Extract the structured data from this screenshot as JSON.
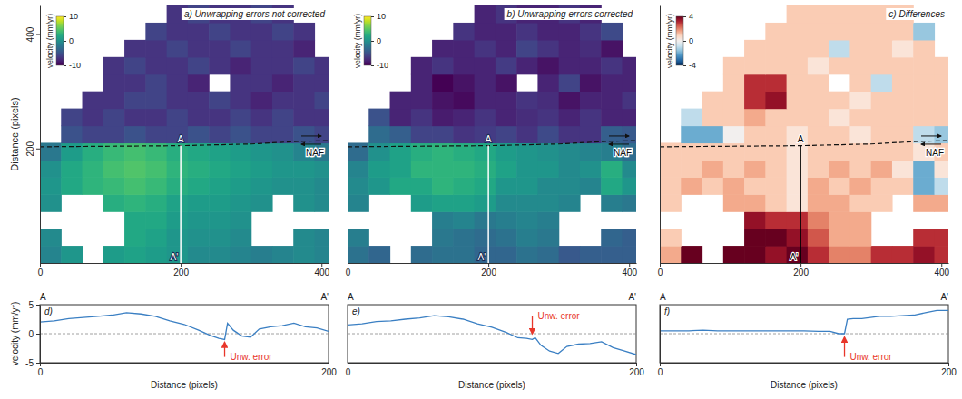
{
  "chart_data": [
    {
      "type": "heatmap",
      "title": "a) Unwrapping errors not corrected",
      "y_label": "Distance (pixels)",
      "xlim": [
        0,
        410
      ],
      "ylim": [
        0,
        450
      ],
      "xticks": [
        0,
        200,
        400
      ],
      "yticks": [
        200,
        400
      ],
      "color": "viridis",
      "x": [
        15,
        45,
        75,
        105,
        135,
        165,
        195,
        225,
        255,
        285,
        315,
        345,
        375,
        405
      ],
      "y": [
        15,
        45,
        75,
        105,
        135,
        165,
        195,
        225,
        255,
        285,
        315,
        345,
        375,
        405,
        435
      ],
      "cells": [
        [
          -1,
          0.5,
          null,
          1,
          1.5,
          1,
          0.5,
          -0.5,
          -0.5,
          -1,
          -1.5,
          -1,
          -0.5,
          -1
        ],
        [
          -0.5,
          null,
          null,
          null,
          2,
          1.5,
          0.5,
          0,
          0,
          -0.5,
          null,
          null,
          -0.5,
          -1
        ],
        [
          null,
          null,
          null,
          null,
          2,
          2,
          1,
          0.5,
          0.5,
          0,
          null,
          null,
          null,
          null
        ],
        [
          0,
          null,
          null,
          2.5,
          3,
          2.5,
          1.5,
          1,
          1,
          0.5,
          0,
          null,
          0,
          -0.5
        ],
        [
          0.5,
          2,
          3,
          3.5,
          4,
          3.5,
          2.5,
          2,
          1.5,
          1,
          0.5,
          0,
          0,
          -0.5
        ],
        [
          0,
          2,
          3,
          4,
          4.5,
          4,
          3,
          2.5,
          2,
          1.5,
          1,
          0.5,
          0.5,
          0
        ],
        [
          -2,
          1,
          2.5,
          3.5,
          4,
          3.5,
          2.5,
          2,
          1.5,
          1,
          0.5,
          0,
          -1,
          -2
        ],
        [
          null,
          -5,
          -6,
          -6,
          -5,
          -6,
          -6,
          -5,
          -6,
          -5,
          -6,
          -6,
          -5,
          -6
        ],
        [
          null,
          -6,
          -7,
          -6,
          -7,
          -7,
          -6,
          -7,
          -7,
          -6,
          -7,
          -6,
          -7,
          -7
        ],
        [
          null,
          null,
          -7,
          -7,
          -6,
          -6,
          -7,
          -7,
          -6,
          -7,
          -8,
          -7,
          -7,
          -6
        ],
        [
          null,
          null,
          null,
          -7,
          -7,
          -6,
          -7,
          -8,
          null,
          -7,
          -7,
          -8,
          -7,
          -7
        ],
        [
          null,
          null,
          null,
          -7,
          -6,
          -7,
          -7,
          -6,
          -7,
          -8,
          -7,
          -7,
          -6,
          -7
        ],
        [
          null,
          null,
          null,
          null,
          -7,
          -7,
          -6,
          -7,
          -7,
          -6,
          -7,
          -7,
          -8,
          null
        ],
        [
          null,
          null,
          null,
          null,
          null,
          -6,
          -7,
          -7,
          -6,
          -7,
          -7,
          -6,
          -7,
          null
        ],
        [
          null,
          null,
          null,
          null,
          null,
          null,
          -7,
          -6,
          -7,
          -7,
          -6,
          -7,
          null,
          null
        ]
      ],
      "colorbar": {
        "label": "velocity (mm/yr)",
        "range": [
          -10,
          10
        ],
        "ticks": [
          10,
          0,
          -10
        ]
      },
      "fault": {
        "label": "NAF",
        "line_style": "dashed",
        "x": [
          0,
          100,
          200,
          300,
          360,
          410
        ],
        "y": [
          203,
          204,
          205,
          208,
          212,
          214
        ]
      },
      "profile": {
        "labels": [
          "A",
          "A'"
        ],
        "x": [
          200,
          200
        ],
        "y": [
          205,
          0
        ]
      }
    },
    {
      "type": "heatmap",
      "title": "b) Unwrapping errors corrected",
      "tick_labels": "x",
      "xlim": [
        0,
        410
      ],
      "ylim": [
        0,
        450
      ],
      "xticks": [
        0,
        200,
        400
      ],
      "color": "viridis",
      "x": [
        15,
        45,
        75,
        105,
        135,
        165,
        195,
        225,
        255,
        285,
        315,
        345,
        375,
        405
      ],
      "y": [
        15,
        45,
        75,
        105,
        135,
        165,
        195,
        225,
        255,
        285,
        315,
        345,
        375,
        405,
        435
      ],
      "cells": [
        [
          -2.5,
          -3.5,
          null,
          -3,
          -2.5,
          -2.5,
          -3.5,
          -3.5,
          -2.5,
          -3,
          -4.5,
          -4,
          -4,
          -4
        ],
        [
          -1.5,
          null,
          null,
          null,
          -2,
          -2.5,
          -3,
          -2.5,
          -1.5,
          -2,
          null,
          null,
          -3.5,
          -4
        ],
        [
          null,
          null,
          null,
          null,
          -1.5,
          -1,
          -2,
          -1.5,
          -1,
          -1.5,
          null,
          null,
          null,
          null
        ],
        [
          -1,
          null,
          null,
          1,
          1.5,
          1.5,
          1,
          -0.5,
          -0.5,
          -0.5,
          -1,
          null,
          -1.5,
          -2
        ],
        [
          -0.5,
          0.5,
          2,
          2,
          3,
          2.5,
          2,
          0.5,
          0.5,
          -0.5,
          -0.5,
          -1,
          2,
          0.5
        ],
        [
          -1,
          1,
          1.5,
          3,
          3,
          3,
          2.5,
          1.5,
          0.5,
          0.5,
          -0.5,
          0,
          2.5,
          -0.5
        ],
        [
          -3,
          0,
          1.5,
          2.5,
          3,
          2.5,
          2,
          1,
          0.5,
          0,
          -0.5,
          -1,
          -1.5,
          -3
        ],
        [
          null,
          -3,
          -4,
          -6,
          -6,
          -7,
          -6.5,
          -6,
          -7,
          -5.5,
          -7,
          -7,
          -4,
          -4.5
        ],
        [
          null,
          -5,
          -8,
          -7,
          -8.5,
          -8,
          -7,
          -8,
          -7.5,
          -7,
          -8,
          -7,
          -8,
          -8
        ],
        [
          null,
          null,
          -8,
          -8,
          -9,
          -9.5,
          -8,
          -8,
          -7,
          -7.5,
          -9,
          -8,
          -8,
          -7
        ],
        [
          null,
          null,
          null,
          -8,
          -10,
          -9,
          -8,
          -9,
          null,
          -8,
          -6,
          -9,
          -8,
          -8
        ],
        [
          null,
          null,
          null,
          -8,
          -7,
          -8,
          -8,
          -6.5,
          -8,
          -9,
          -8,
          -8,
          -7,
          -8
        ],
        [
          null,
          null,
          null,
          null,
          -8,
          -8,
          -7,
          -8,
          -6,
          -7,
          -8,
          -7.5,
          -9,
          null
        ],
        [
          null,
          null,
          null,
          null,
          null,
          -7,
          -8,
          -8,
          -7,
          -8,
          -8,
          -7,
          -5.5,
          null
        ],
        [
          null,
          null,
          null,
          null,
          null,
          null,
          -8,
          -7,
          -8,
          -8,
          -7,
          -8,
          null,
          null
        ]
      ],
      "colorbar": {
        "label": "velocity (mm/yr)",
        "range": [
          -10,
          10
        ],
        "ticks": [
          10,
          0,
          -10
        ]
      },
      "fault": {
        "label": "NAF",
        "line_style": "dashed",
        "x": [
          0,
          100,
          200,
          300,
          360,
          410
        ],
        "y": [
          203,
          204,
          205,
          208,
          212,
          214
        ]
      },
      "profile": {
        "labels": [
          "A",
          "A'"
        ],
        "x": [
          200,
          200
        ],
        "y": [
          205,
          0
        ]
      }
    },
    {
      "type": "heatmap",
      "title": "c) Differences",
      "tick_labels": "x",
      "xlim": [
        0,
        410
      ],
      "ylim": [
        0,
        450
      ],
      "xticks": [
        0,
        200,
        400
      ],
      "color": "RdBu",
      "x": [
        15,
        45,
        75,
        105,
        135,
        165,
        195,
        225,
        255,
        285,
        315,
        345,
        375,
        405
      ],
      "y": [
        15,
        45,
        75,
        105,
        135,
        165,
        195,
        225,
        255,
        285,
        315,
        345,
        375,
        405,
        435
      ],
      "cells": [
        [
          1.5,
          4,
          null,
          4,
          4,
          3.5,
          4,
          3,
          2,
          2,
          3,
          3,
          3.5,
          3
        ],
        [
          1,
          null,
          null,
          null,
          4,
          4,
          3.5,
          2.5,
          1.5,
          1.5,
          null,
          null,
          3,
          3
        ],
        [
          null,
          null,
          null,
          null,
          3.5,
          3,
          3,
          2,
          1.5,
          1.5,
          null,
          null,
          null,
          null
        ],
        [
          1,
          null,
          null,
          1.5,
          1.5,
          1,
          0.5,
          1.5,
          1.5,
          1,
          1,
          null,
          1.5,
          1.5
        ],
        [
          1,
          1.5,
          1,
          1.5,
          1,
          1,
          0.5,
          1.5,
          1,
          1.5,
          1,
          1,
          -2,
          -1
        ],
        [
          1,
          1,
          1.5,
          1,
          1.5,
          1,
          0.5,
          1,
          1.5,
          1,
          1.5,
          0.5,
          -2,
          0.5
        ],
        [
          1,
          1,
          1,
          1,
          1,
          1,
          0.5,
          1,
          1,
          1,
          1,
          1,
          0.5,
          1
        ],
        [
          null,
          -2,
          -2,
          0,
          1,
          1,
          0.5,
          1,
          1,
          0.5,
          1,
          1,
          -1,
          -1.5
        ],
        [
          null,
          -1,
          1,
          1,
          1.5,
          1,
          1,
          1,
          0.5,
          1,
          1,
          1,
          1,
          1
        ],
        [
          null,
          null,
          1,
          1,
          3,
          3.5,
          1,
          1,
          1,
          0.5,
          1,
          1,
          1,
          1
        ],
        [
          null,
          null,
          null,
          1,
          3,
          3,
          1,
          1,
          null,
          1,
          -1,
          1,
          1,
          1
        ],
        [
          null,
          null,
          null,
          1,
          1,
          1,
          1,
          0.5,
          1,
          1,
          1,
          1,
          1,
          1
        ],
        [
          null,
          null,
          null,
          null,
          1,
          1,
          1,
          1,
          -1,
          1,
          1,
          0.5,
          1,
          null
        ],
        [
          null,
          null,
          null,
          null,
          null,
          1,
          1,
          1,
          1,
          1,
          1,
          1,
          -1.5,
          null
        ],
        [
          null,
          null,
          null,
          null,
          null,
          null,
          1,
          1,
          1,
          1,
          1,
          1,
          null,
          null
        ]
      ],
      "colorbar": {
        "label": "velocity (mm/yr)",
        "range": [
          -4,
          4
        ],
        "ticks": [
          4,
          0,
          -4
        ]
      },
      "fault": {
        "label": "NAF",
        "line_style": "dashed",
        "x": [
          0,
          100,
          200,
          300,
          360,
          410
        ],
        "y": [
          203,
          204,
          205,
          208,
          212,
          214
        ]
      },
      "profile": {
        "labels": [
          "A",
          "A'"
        ],
        "x": [
          200,
          200
        ],
        "y": [
          205,
          0
        ]
      }
    },
    {
      "type": "line",
      "title": "d)",
      "x_label": "Distance (pixels)",
      "y_label": "velocity (mm/yr)",
      "xlim": [
        0,
        200
      ],
      "ylim": [
        -5,
        5
      ],
      "xticks": [
        0,
        200
      ],
      "yticks": [
        -5,
        0,
        5
      ],
      "hline": 0,
      "ends": [
        "A",
        "A'"
      ],
      "color": "#3a7fc3",
      "x": [
        0,
        10,
        20,
        30,
        40,
        50,
        60,
        70,
        80,
        90,
        100,
        110,
        118,
        124,
        128,
        130,
        134,
        140,
        146,
        152,
        160,
        168,
        176,
        184,
        192,
        200
      ],
      "values": [
        2,
        2.2,
        2.6,
        2.8,
        3,
        3.2,
        3.6,
        3.4,
        3,
        2.2,
        1.6,
        0.6,
        -0.3,
        -0.8,
        -1,
        1.8,
        0.6,
        -0.4,
        -0.6,
        0.8,
        1.2,
        1.4,
        1.8,
        1.2,
        1,
        0.4
      ],
      "annotations": [
        {
          "text": "Unw. error",
          "x": 128,
          "y": -1.5,
          "from_y": -4
        }
      ]
    },
    {
      "type": "line",
      "title": "e)",
      "x_label": "Distance (pixels)",
      "tick_labels": "x",
      "xlim": [
        0,
        200
      ],
      "ylim": [
        -5,
        5
      ],
      "xticks": [
        0,
        200
      ],
      "hline": 0,
      "ends": [
        "A",
        "A'"
      ],
      "color": "#3a7fc3",
      "x": [
        0,
        10,
        20,
        30,
        40,
        50,
        60,
        70,
        80,
        90,
        100,
        110,
        118,
        124,
        128,
        130,
        134,
        140,
        146,
        152,
        160,
        168,
        176,
        184,
        192,
        200
      ],
      "values": [
        1.5,
        1.7,
        2.1,
        2.2,
        2.5,
        2.7,
        3.1,
        2.9,
        2.5,
        1.7,
        1.1,
        0.2,
        -0.7,
        -0.8,
        -1,
        -0.7,
        -2,
        -3,
        -3.4,
        -2.2,
        -1.8,
        -1.7,
        -1.4,
        -2.4,
        -3,
        -3.6
      ],
      "annotations": [
        {
          "text": "Unw. error",
          "x": 128,
          "y": 0,
          "from_y": 3
        }
      ]
    },
    {
      "type": "line",
      "title": "f)",
      "x_label": "Distance (pixels)",
      "tick_labels": "x",
      "xlim": [
        0,
        200
      ],
      "ylim": [
        -5,
        5
      ],
      "xticks": [
        0,
        200
      ],
      "hline": 0,
      "ends": [
        "A",
        "A'"
      ],
      "color": "#3a7fc3",
      "x": [
        0,
        10,
        20,
        30,
        40,
        50,
        60,
        70,
        80,
        90,
        100,
        110,
        118,
        124,
        128,
        130,
        134,
        140,
        146,
        152,
        160,
        168,
        176,
        184,
        192,
        200
      ],
      "values": [
        0.5,
        0.5,
        0.5,
        0.6,
        0.5,
        0.5,
        0.5,
        0.5,
        0.5,
        0.5,
        0.5,
        0.4,
        0.4,
        0,
        0,
        2.5,
        2.6,
        2.6,
        2.8,
        3,
        3,
        3.1,
        3.2,
        3.6,
        4,
        4
      ],
      "annotations": [
        {
          "text": "Unw. error",
          "x": 128,
          "y": -0.6,
          "from_y": -4
        }
      ]
    }
  ]
}
